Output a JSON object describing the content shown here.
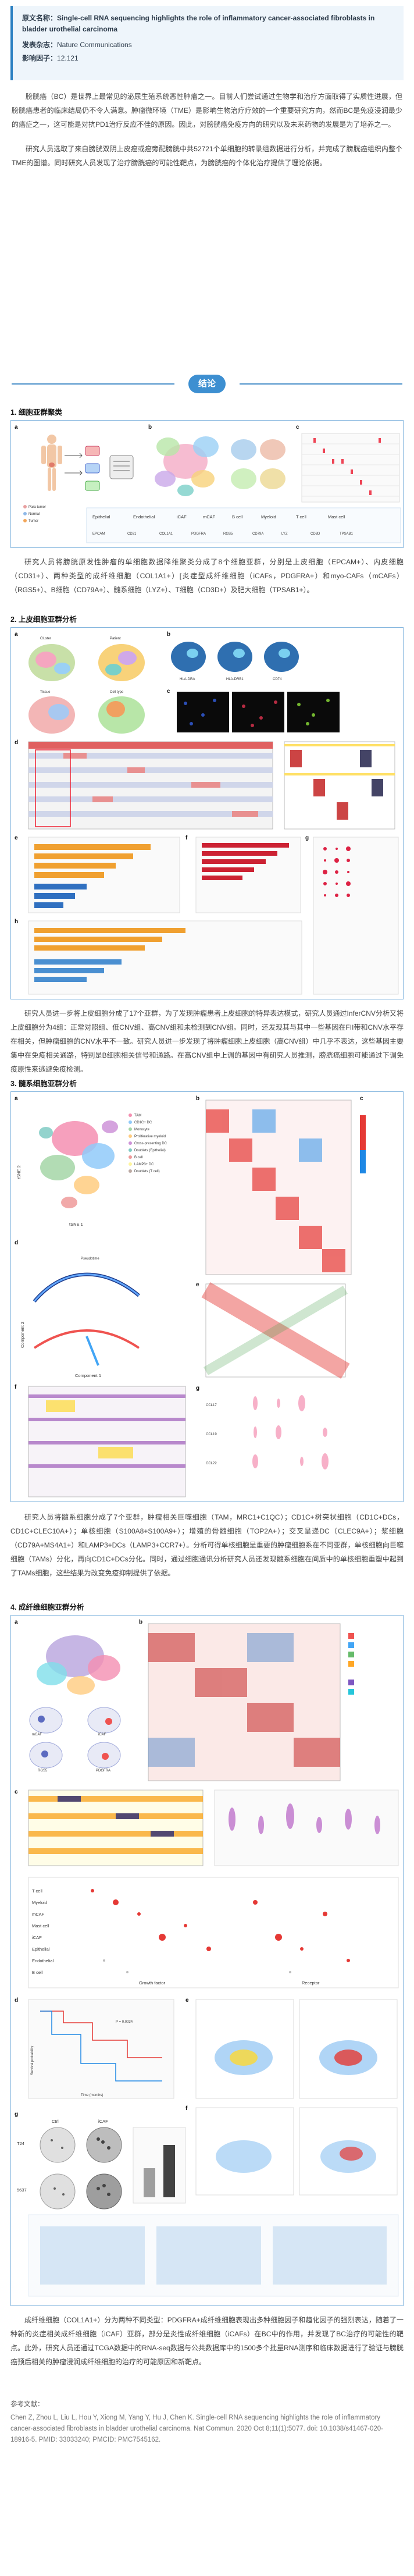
{
  "meta": {
    "title_label": "原文名称：",
    "title": "Single-cell RNA sequencing highlights the role of inflammatory cancer-associated fibroblasts in bladder urothelial carcinoma",
    "source_label": "发表杂志：",
    "source": "Nature Communications",
    "impact_label": "影响因子：",
    "impact": "12.121"
  },
  "intro": {
    "p1": "膀胱癌（BC）是世界上最常见的泌尿生殖系统恶性肿瘤之一。目前人们尝试通过生物学和治疗方面取得了实质性进展，但膀胱癌患者的临床结局仍不令人满意。肿瘤微环境（TME）是影响生物治疗疗效的一个重要研究方向，然而BC是免疫浸润最少的癌症之一，这可能是对抗PD1治疗反应不佳的原因。因此，对膀胱癌免疫方向的研究以及未来药物的发展是为了培养之一。",
    "p2": "研究人员选取了来自膀胱双阴上皮癌或癌旁配膀胱中共52721个单细胞的转录组数据进行分析，并完成了膀胱癌组织内整个TME的图谱。同时研究人员发现了治疗膀胱癌的可能性靶点，为膀胱癌的个体化治疗提供了理论依据。"
  },
  "divider": {
    "label": "结论"
  },
  "sections": {
    "s1": "1. 细胞亚群聚类",
    "s2": "2. 上皮细胞亚群分析",
    "s3": "3. 髓系细胞亚群分析",
    "s4": "4. 成纤维细胞亚群分析"
  },
  "captions": {
    "c1": "研究人员将膀胱原发性肿瘤的单细胞数据降维聚类分成了8个细胞亚群，分别是上皮细胞（EPCAM+）、内皮细胞（CD31+）、两种类型的成纤维细胞（COL1A1+）[炎症型成纤维细胞（iCAFs，PDGFRA+）和myo-CAFs（mCAFs）（RGS5+）、B细胞（CD79A+）、髓系细胞（LYZ+）、T细胞（CD3D+）及肥大细胞（TPSAB1+）。",
    "c2": "研究人员进一步将上皮细胞分成了17个亚群，为了发现肿瘤患者上皮细胞的特异表达模式，研究人员通过InferCNV分析又将上皮细胞分为4组：正常对照组、低CNV组、高CNV组和未检测到CNV组。同时，还发现其与其中一些基因在FII带和CNV水平存在相关，但肿瘤细胞的CNV水平不一致。研究人员进一步发现了将肿瘤细胞上皮细胞（高CNV组）中几乎不表达，这些基因主要集中在免疫相关通路，特别是B细胞相关信号和通路。在高CNV组中上调的基因中有研究人员推测，膀胱癌细胞可能通过下调免疫原性来逃避免疫检测。",
    "c3": "研究人员将髓系细胞分成了7个亚群，肿瘤相关巨噬细胞（TAM，MRC1+C1QC）；CD1C+树突状细胞（CD1C+DCs，CD1C+CLEC10A+）；单核细胞（S100A8+S100A9+）；增殖的骨髓细胞（TOP2A+）；交叉呈递DC（CLEC9A+）；浆细胞（CD79A+MS4A1+）和LAMP3+DCs（LAMP3+CCR7+）。分析可得单核细胞是重要的肿瘤细胞系在不同亚群，单核细胞向巨噬细胞（TAMs）分化，再向CD1C+DCs分化。同时，通过细胞通讯分析研究人员还发现髓系细胞在间质中的单核细胞重塑中起到了TAMs细胞，这些结果为改变免疫抑制提供了依据。",
    "c4": "成纤维细胞（COL1A1+）分为两种不同类型：PDGFRA+成纤维细胞表现出多种细胞因子和趋化因子的强烈表达，随着了一种新的炎症相关成纤维细胞（iCAF）亚群，部分是炎性成纤维细胞（iCAFs）在BC中的作用，并发现了BC治疗的可能性的靶点。此外，研究人员还通过TCGA数据中的RNA-seq数据与公共数据库中的1500多个批量RNA测序和临床数据进行了验证与膀胱癌预后相关的肿瘤浸润成纤维细胞的治疗的可能原因和新靶点。"
  },
  "refs": {
    "head": "参考文献：",
    "body": "Chen Z, Zhou L, Liu L, Hou Y, Xiong M, Yang Y, Hu J, Chen K. Single-cell RNA sequencing highlights the role of inflammatory cancer-associated fibroblasts in bladder urothelial carcinoma. Nat Commun. 2020 Oct 8;11(1):5077. doi: 10.1038/s41467-020-18916-5. PMID: 33033240; PMCID: PMC7545162."
  },
  "fig1": {
    "a": "a",
    "b": "b",
    "c": "c",
    "legend": [
      "Para-tumor",
      "Normal",
      "Tumor"
    ],
    "clusters": [
      "Epithelial",
      "Endothelial",
      "iCAF",
      "mCAF",
      "B cell",
      "Myeloid",
      "T cell",
      "Mast cell"
    ],
    "genes": [
      "EPCAM",
      "CD31",
      "COL1A1",
      "PDGFRA",
      "RGS5",
      "CD79A",
      "LYZ",
      "CD3D",
      "TPSAB1"
    ]
  },
  "fig2": {
    "a": "a",
    "b": "b",
    "c": "c",
    "d": "d",
    "e": "e",
    "f": "f",
    "g": "g",
    "h": "h",
    "tabs": [
      "Cluster",
      "Patient",
      "Tissue",
      "Cell type"
    ],
    "umap_genes": [
      "HLA-DRA",
      "HLA-DRB1",
      "CD74"
    ]
  },
  "fig3": {
    "a": "a",
    "b": "b",
    "c": "c",
    "d": "d",
    "e": "e",
    "f": "f",
    "g": "g",
    "legend": [
      "TAM",
      "CD1C+ DC",
      "Monocyte",
      "Proliferative myeloid",
      "Cross-presenting DC",
      "Doublets (Epithelial)",
      "B cell",
      "LAMP3+ DC",
      "Doublets (T cell)"
    ],
    "xlabel": "tSNE 1",
    "ylabel": "tSNE 2",
    "pseudo": "Pseudotime",
    "comp1": "Component 1",
    "comp2": "Component 2",
    "violin_genes": [
      "CCL17",
      "CCL19",
      "CCL22"
    ]
  },
  "fig4": {
    "a": "a",
    "b": "b",
    "c": "c",
    "d": "d",
    "e": "e",
    "f": "f",
    "g": "g",
    "a_labels": [
      "mCAF",
      "iCAF",
      "RGS5",
      "PDGFRA"
    ],
    "c_rows": [
      "T cell",
      "Myeloid",
      "mCAF",
      "Mast cell",
      "iCAF",
      "Epithelial",
      "Endothelial",
      "B cell"
    ],
    "c_xl": "Growth factor",
    "c_xr": "Receptor",
    "d_ylabel": "Survival probability",
    "d_xlabel": "Time (months)",
    "d_pval": "P = 0.0034",
    "g_labels": [
      "Ctrl",
      "iCAF",
      "T24",
      "5637"
    ]
  }
}
